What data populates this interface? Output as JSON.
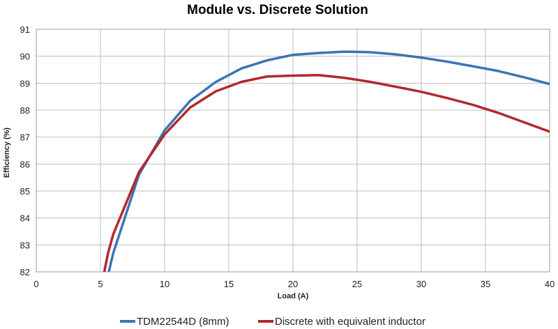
{
  "chart_data": {
    "type": "line",
    "title": "Module vs. Discrete Solution",
    "xlabel": "Load (A)",
    "ylabel": "Efficiency (%)",
    "xlim": [
      0,
      40
    ],
    "ylim": [
      82,
      91
    ],
    "x_ticks": [
      "0",
      "5",
      "10",
      "15",
      "20",
      "25",
      "30",
      "35",
      "40"
    ],
    "y_ticks": [
      "82",
      "83",
      "84",
      "85",
      "86",
      "87",
      "88",
      "89",
      "90",
      "91"
    ],
    "grid": true,
    "legend_position": "bottom",
    "series": [
      {
        "name": "TDM22544D (8mm)",
        "color": "#3a75b4",
        "x": [
          5.65,
          6,
          8,
          10,
          12,
          14,
          16,
          18,
          20,
          22,
          24,
          26,
          28,
          30,
          32,
          34,
          36,
          38,
          40
        ],
        "y": [
          82.0,
          82.7,
          85.6,
          87.25,
          88.35,
          89.05,
          89.55,
          89.85,
          90.05,
          90.12,
          90.17,
          90.15,
          90.07,
          89.95,
          89.8,
          89.63,
          89.45,
          89.22,
          88.97
        ]
      },
      {
        "name": "Discrete with equivalent inductor",
        "color": "#b3282c",
        "x": [
          5.3,
          5.6,
          6,
          8,
          10,
          12,
          14,
          16,
          18,
          20,
          22,
          24,
          26,
          28,
          30,
          32,
          34,
          36,
          38,
          40
        ],
        "y": [
          82.0,
          82.7,
          83.4,
          85.7,
          87.1,
          88.1,
          88.7,
          89.05,
          89.25,
          89.28,
          89.3,
          89.2,
          89.05,
          88.87,
          88.68,
          88.45,
          88.2,
          87.9,
          87.55,
          87.2
        ]
      }
    ]
  }
}
